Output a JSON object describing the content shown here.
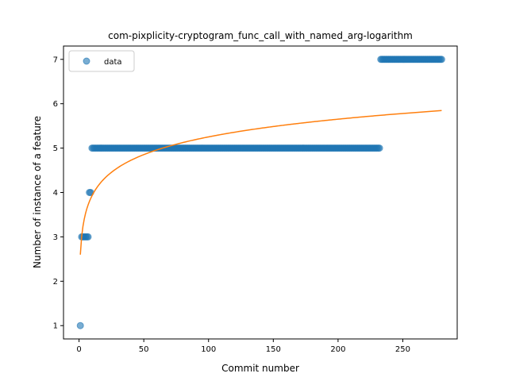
{
  "chart_data": {
    "type": "scatter",
    "title": "com-pixplicity-cryptogram_func_call_with_named_arg-logarithm",
    "xlabel": "Commit number",
    "ylabel": "Number of instance of a feature",
    "xlim": [
      -12,
      292
    ],
    "ylim": [
      0.7,
      7.3
    ],
    "xticks": [
      0,
      50,
      100,
      150,
      200,
      250
    ],
    "yticks": [
      1,
      2,
      3,
      4,
      5,
      6,
      7
    ],
    "grid": false,
    "legend": {
      "placement": "upper-left",
      "entries": [
        "data"
      ]
    },
    "colors": {
      "data": "#1f77b4",
      "fit": "#ff7f0e"
    },
    "series": [
      {
        "name": "data",
        "kind": "points",
        "segments": [
          {
            "x_start": 1,
            "x_end": 1,
            "y": 1
          },
          {
            "x_start": 2,
            "x_end": 7,
            "y": 3
          },
          {
            "x_start": 8,
            "x_end": 9,
            "y": 4
          },
          {
            "x_start": 10,
            "x_end": 232,
            "y": 5
          },
          {
            "x_start": 233,
            "x_end": 280,
            "y": 7
          }
        ]
      },
      {
        "kind": "logarithmic-fit",
        "x_range": [
          1,
          280
        ],
        "a": 2.6,
        "b": 0.576
      }
    ]
  }
}
